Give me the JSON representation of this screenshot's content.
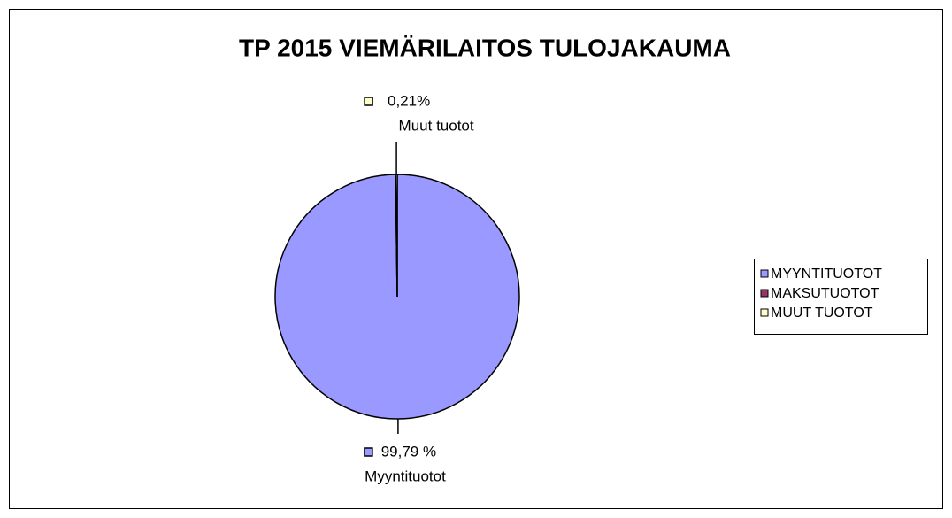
{
  "chart_data": {
    "type": "pie",
    "title": "TP 2015 VIEMÄRILAITOS TULOJAKAUMA",
    "categories": [
      "MYYNTITUOTOT",
      "MAKSUTUOTOT",
      "MUUT TUOTOT"
    ],
    "values": [
      99.79,
      0,
      0.21
    ],
    "value_labels": [
      "99,79 %",
      null,
      "0,21%"
    ],
    "label_names": [
      "Myyntituotot",
      null,
      "Muut tuotot"
    ],
    "colors": [
      "#9999ff",
      "#993366",
      "#ffffcc"
    ],
    "legend": "right"
  }
}
